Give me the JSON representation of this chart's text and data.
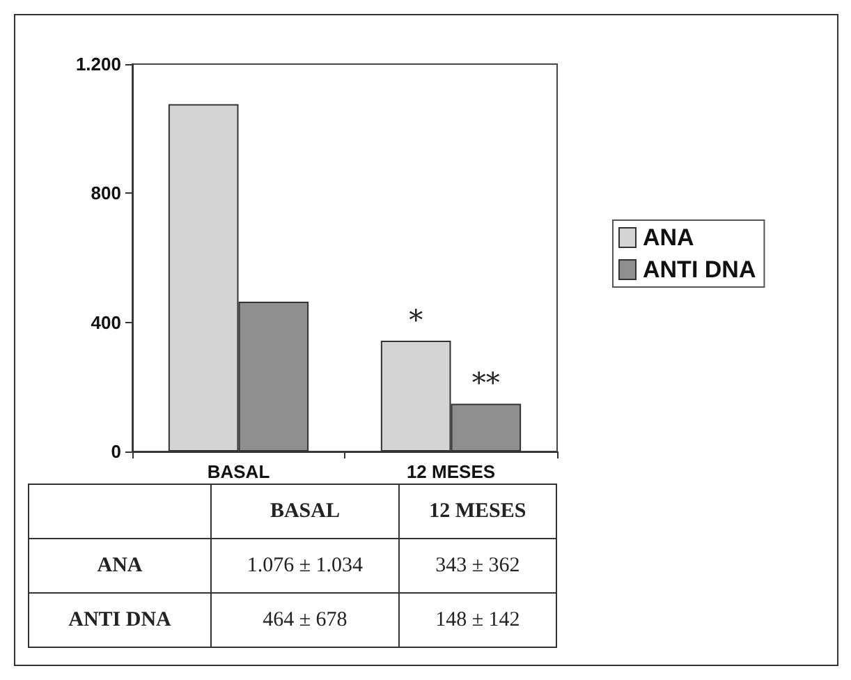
{
  "chart_data": {
    "type": "bar",
    "categories": [
      "BASAL",
      "12 MESES"
    ],
    "series": [
      {
        "name": "ANA",
        "color": "#d4d4d4",
        "values": [
          1076,
          343
        ],
        "value_labels": [
          "1.076 ± 1.034",
          "343 ± 362"
        ]
      },
      {
        "name": "ANTI DNA",
        "color": "#8f8f8f",
        "values": [
          464,
          148
        ],
        "value_labels": [
          "464 ± 678",
          "148 ± 142"
        ]
      }
    ],
    "ylim": [
      0,
      1200
    ],
    "yticks": [
      0,
      400,
      800,
      {
        "value": 1200,
        "label": "1.200"
      }
    ],
    "grid": false,
    "legend": "right",
    "annotations": [
      {
        "text": "*",
        "x": "12 MESES",
        "y": 343
      },
      {
        "text": "**",
        "x": "12 MESES",
        "y": 148
      }
    ]
  }
}
